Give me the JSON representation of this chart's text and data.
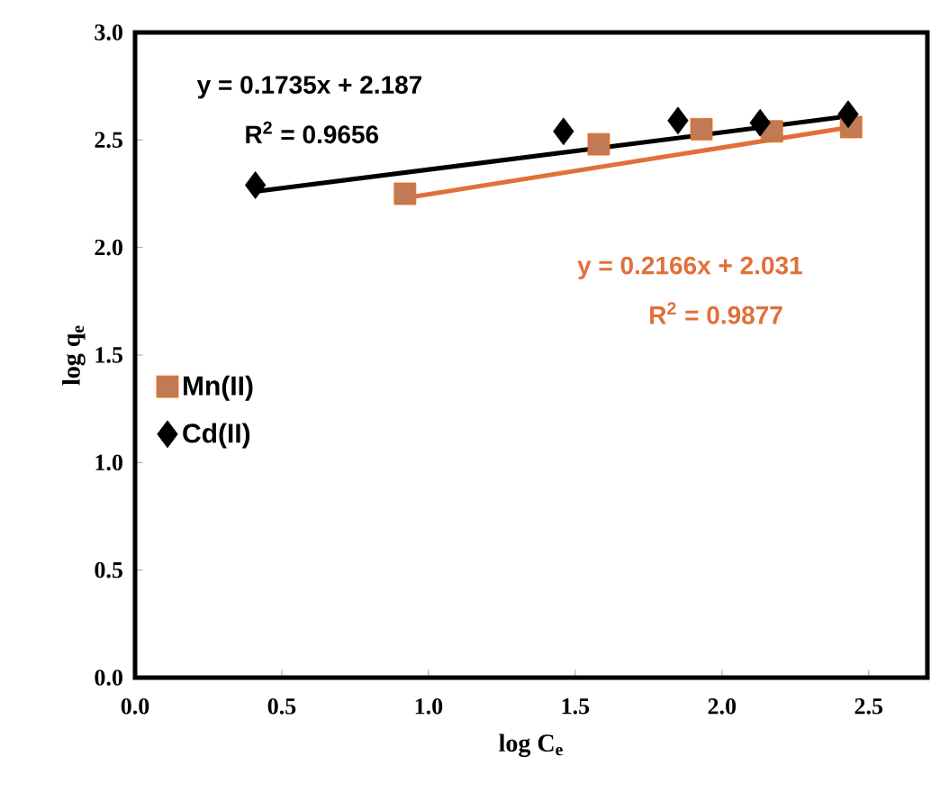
{
  "chart_data": {
    "type": "scatter",
    "xlabel": "log C$_{e}$",
    "ylabel": "log q$_{e}$",
    "xlim": [
      0,
      2.7
    ],
    "ylim": [
      0,
      3.0
    ],
    "xticks": [
      {
        "value": 0,
        "label": "0.0"
      },
      {
        "value": 0.5,
        "label": "0.5"
      },
      {
        "value": 1,
        "label": "1.0"
      },
      {
        "value": 1.5,
        "label": "1.5"
      },
      {
        "value": 2,
        "label": "2.0"
      },
      {
        "value": 2.5,
        "label": "2.5"
      }
    ],
    "yticks": [
      {
        "value": 0,
        "label": "0.0"
      },
      {
        "value": 0.5,
        "label": "0.5"
      },
      {
        "value": 1,
        "label": "1.0"
      },
      {
        "value": 1.5,
        "label": "1.5"
      },
      {
        "value": 2,
        "label": "2.0"
      },
      {
        "value": 2.5,
        "label": "2.5"
      },
      {
        "value": 3,
        "label": "3.0"
      }
    ],
    "legend": "left",
    "series": [
      {
        "name": "Mn(II)",
        "marker": "square",
        "color": "#c07a55",
        "x": [
          0.92,
          1.58,
          1.93,
          2.17,
          2.44
        ],
        "values": [
          2.25,
          2.48,
          2.55,
          2.54,
          2.56
        ]
      },
      {
        "name": "Cd(II)",
        "marker": "diamond",
        "color": "#000000",
        "x": [
          0.41,
          1.46,
          1.85,
          2.13,
          2.43
        ],
        "values": [
          2.29,
          2.54,
          2.59,
          2.58,
          2.62
        ]
      },
      {
        "type": "line",
        "marker": "none",
        "color": "#e0703a",
        "x": [
          0.92,
          2.44
        ],
        "values": [
          2.23,
          2.56
        ]
      },
      {
        "type": "line",
        "marker": "none",
        "color": "#000000",
        "x": [
          0.41,
          2.43
        ],
        "values": [
          2.26,
          2.61
        ]
      }
    ],
    "annotations": [
      "y = 0.1735x + 2.187",
      "R$^{2}$ = 0.9656",
      "y = 0.2166x + 2.031",
      "R$^{2}$ = 0.9877"
    ]
  }
}
